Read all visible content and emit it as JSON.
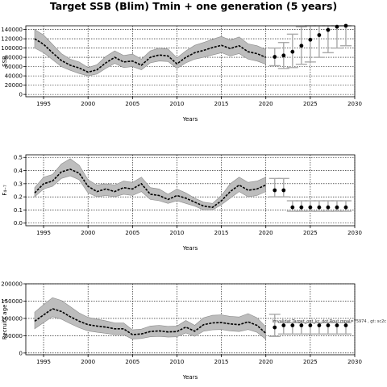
{
  "figure": {
    "title": "Target SSB (Blim) Tmin + one generation (5 years)"
  },
  "chart_data": [
    {
      "type": "line",
      "panel": "SSB",
      "xlabel": "Years",
      "ylabel": "SSB",
      "xlim": [
        1993,
        2030
      ],
      "ylim": [
        -5000,
        148000
      ],
      "xticks": [
        1995,
        2000,
        2005,
        2010,
        2015,
        2020,
        2025,
        2030
      ],
      "yticks": [
        0,
        20000,
        40000,
        60000,
        80000,
        100000,
        120000,
        140000
      ],
      "grid": true,
      "x": [
        1994,
        1995,
        1996,
        1997,
        1998,
        1999,
        2000,
        2001,
        2002,
        2003,
        2004,
        2005,
        2006,
        2007,
        2008,
        2009,
        2010,
        2011,
        2012,
        2013,
        2014,
        2015,
        2016,
        2017,
        2018,
        2019,
        2020
      ],
      "median": [
        120000,
        108000,
        90000,
        73000,
        63000,
        57000,
        48000,
        53000,
        68000,
        80000,
        70000,
        72000,
        63000,
        80000,
        85000,
        83000,
        66000,
        80000,
        90000,
        95000,
        101000,
        106000,
        99000,
        105000,
        92000,
        88000,
        80000
      ],
      "lower": [
        100000,
        90000,
        75000,
        60000,
        52000,
        45000,
        40000,
        44000,
        56000,
        67000,
        58000,
        60000,
        53000,
        68000,
        72000,
        71000,
        56000,
        68000,
        76000,
        80000,
        85000,
        90000,
        83000,
        88000,
        76000,
        72000,
        65000
      ],
      "upper": [
        140000,
        128000,
        108000,
        88000,
        76000,
        70000,
        58000,
        64000,
        82000,
        94000,
        84000,
        87000,
        76000,
        94000,
        100000,
        98000,
        79000,
        94000,
        106000,
        112000,
        119000,
        125000,
        117000,
        124000,
        109000,
        105000,
        97000
      ],
      "projection": {
        "x": [
          2021,
          2022,
          2023,
          2024,
          2025,
          2026,
          2027,
          2028,
          2029
        ],
        "median": [
          81000,
          84000,
          92000,
          105000,
          118000,
          128000,
          139000,
          146000,
          150000
        ],
        "lower": [
          62000,
          56000,
          58000,
          65000,
          70000,
          80000,
          90000,
          100000,
          105000
        ],
        "upper": [
          100000,
          112000,
          130000,
          146000,
          148000,
          148000,
          148000,
          148000,
          148000
        ]
      },
      "ribbon_color": "#bdbdbd",
      "line_color": "#000000",
      "errorbar_color": "#aaaaaa"
    },
    {
      "type": "line",
      "panel": "F",
      "xlabel": "Years",
      "ylabel": "F₄₋₇",
      "xlim": [
        1993,
        2030
      ],
      "ylim": [
        -0.02,
        0.52
      ],
      "xticks": [
        1995,
        2000,
        2005,
        2010,
        2015,
        2020,
        2025,
        2030
      ],
      "yticks": [
        0.0,
        0.1,
        0.2,
        0.3,
        0.4,
        0.5
      ],
      "ytick_labels": [
        "0.0",
        "0.1",
        "0.2",
        "0.3",
        "0.4",
        "0.5"
      ],
      "grid": true,
      "x": [
        1994,
        1995,
        1996,
        1997,
        1998,
        1999,
        2000,
        2001,
        2002,
        2003,
        2004,
        2005,
        2006,
        2007,
        2008,
        2009,
        2010,
        2011,
        2012,
        2013,
        2014,
        2015,
        2016,
        2017,
        2018,
        2019,
        2020
      ],
      "median": [
        0.23,
        0.3,
        0.32,
        0.39,
        0.41,
        0.38,
        0.28,
        0.24,
        0.26,
        0.24,
        0.27,
        0.26,
        0.3,
        0.22,
        0.21,
        0.18,
        0.21,
        0.19,
        0.16,
        0.13,
        0.12,
        0.17,
        0.24,
        0.29,
        0.25,
        0.26,
        0.29
      ],
      "lower": [
        0.2,
        0.26,
        0.28,
        0.34,
        0.36,
        0.33,
        0.23,
        0.2,
        0.21,
        0.2,
        0.22,
        0.21,
        0.24,
        0.18,
        0.17,
        0.15,
        0.17,
        0.15,
        0.13,
        0.1,
        0.1,
        0.14,
        0.19,
        0.24,
        0.2,
        0.21,
        0.24
      ],
      "upper": [
        0.27,
        0.35,
        0.37,
        0.45,
        0.49,
        0.44,
        0.33,
        0.29,
        0.3,
        0.29,
        0.32,
        0.31,
        0.35,
        0.27,
        0.26,
        0.22,
        0.26,
        0.23,
        0.19,
        0.16,
        0.15,
        0.21,
        0.3,
        0.35,
        0.31,
        0.32,
        0.35
      ],
      "projection": {
        "x": [
          2021,
          2022,
          2023,
          2024,
          2025,
          2026,
          2027,
          2028,
          2029
        ],
        "median": [
          0.25,
          0.25,
          0.12,
          0.12,
          0.12,
          0.12,
          0.12,
          0.12,
          0.12
        ],
        "lower": [
          0.2,
          0.2,
          0.09,
          0.09,
          0.09,
          0.09,
          0.09,
          0.09,
          0.09
        ],
        "upper": [
          0.34,
          0.34,
          0.17,
          0.17,
          0.17,
          0.17,
          0.17,
          0.17,
          0.17
        ]
      },
      "ribbon_color": "#bdbdbd",
      "line_color": "#000000",
      "errorbar_color": "#aaaaaa"
    },
    {
      "type": "line",
      "panel": "Recruits",
      "xlabel": "Years",
      "ylabel": "Recruits age 1",
      "xlim": [
        1993,
        2030
      ],
      "ylim": [
        -5000,
        200000
      ],
      "xticks": [
        1995,
        2000,
        2005,
        2010,
        2015,
        2020,
        2025,
        2030
      ],
      "yticks": [
        0,
        50000,
        100000,
        150000,
        200000
      ],
      "grid": true,
      "x": [
        1994,
        1995,
        1996,
        1997,
        1998,
        1999,
        2000,
        2001,
        2002,
        2003,
        2004,
        2005,
        2006,
        2007,
        2008,
        2009,
        2010,
        2011,
        2012,
        2013,
        2014,
        2015,
        2016,
        2017,
        2018,
        2019,
        2020
      ],
      "median": [
        92000,
        110000,
        128000,
        120000,
        105000,
        92000,
        82000,
        78000,
        75000,
        70000,
        70000,
        53000,
        55000,
        62000,
        64000,
        61000,
        62000,
        75000,
        63000,
        82000,
        87000,
        88000,
        84000,
        82000,
        90000,
        80000,
        57000
      ],
      "lower": [
        70000,
        88000,
        105000,
        98000,
        85000,
        73000,
        64000,
        60000,
        57000,
        53000,
        53000,
        40000,
        42000,
        47000,
        48000,
        46000,
        47000,
        58000,
        48000,
        63000,
        67000,
        68000,
        64000,
        62000,
        68000,
        60000,
        40000
      ],
      "upper": [
        118000,
        140000,
        160000,
        152000,
        134000,
        116000,
        103000,
        98000,
        93000,
        87000,
        87000,
        67000,
        69000,
        78000,
        80000,
        77000,
        78000,
        94000,
        80000,
        102000,
        109000,
        110000,
        106000,
        104000,
        114000,
        102000,
        76000
      ],
      "projection": {
        "x": [
          2021,
          2022,
          2023,
          2024,
          2025,
          2026,
          2027,
          2028,
          2029
        ],
        "median": [
          74000,
          80000,
          80000,
          80000,
          80000,
          80000,
          80000,
          80000,
          80000
        ],
        "lower": [
          48000,
          55000,
          55000,
          55000,
          55000,
          55000,
          55000,
          55000,
          55000
        ],
        "upper": [
          112000,
          88000,
          88000,
          88000,
          88000,
          88000,
          88000,
          88000,
          88000
        ]
      },
      "ribbon_color": "#bdbdbd",
      "line_color": "#000000",
      "errorbar_color": "#aaaaaa",
      "annotation": "lmvalidat Target_out_kc_dot.Rout mpal=75974 , gt: sc2c"
    }
  ]
}
